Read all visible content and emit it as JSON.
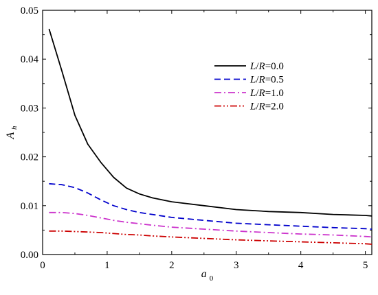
{
  "chart_data": {
    "type": "line",
    "xlabel": "a",
    "xlabel_sub": "0",
    "ylabel": "A",
    "ylabel_sub": "h",
    "xlim": [
      0,
      5.1
    ],
    "ylim": [
      0,
      0.05
    ],
    "xticks": [
      0,
      1,
      2,
      3,
      4,
      5
    ],
    "xtick_labels": [
      "0",
      "1",
      "2",
      "3",
      "4",
      "5"
    ],
    "yticks": [
      0,
      0.01,
      0.02,
      0.03,
      0.04,
      0.05
    ],
    "ytick_labels": [
      "0.00",
      "0.01",
      "0.02",
      "0.03",
      "0.04",
      "0.05"
    ],
    "grid": false,
    "legend_position": "top-right",
    "series": [
      {
        "name": "L/R=0.0",
        "label_italic_1": "L",
        "label_sep": "/",
        "label_italic_2": "R",
        "label_value": "=0.0",
        "color": "#000000",
        "dash": "solid",
        "x": [
          0.1,
          0.3,
          0.5,
          0.7,
          0.9,
          1.1,
          1.3,
          1.5,
          1.7,
          2.0,
          2.5,
          3.0,
          3.5,
          4.0,
          4.5,
          5.0,
          5.1
        ],
        "y": [
          0.0462,
          0.0375,
          0.0285,
          0.0226,
          0.0189,
          0.0158,
          0.0136,
          0.0124,
          0.0116,
          0.0108,
          0.01,
          0.0092,
          0.0088,
          0.0086,
          0.0082,
          0.008,
          0.0079
        ]
      },
      {
        "name": "L/R=0.5",
        "label_italic_1": "L",
        "label_sep": "/",
        "label_italic_2": "R",
        "label_value": "=0.5",
        "color": "#0000cc",
        "dash": "dash",
        "x": [
          0.1,
          0.3,
          0.5,
          0.7,
          0.9,
          1.1,
          1.3,
          1.5,
          1.7,
          2.0,
          2.5,
          3.0,
          3.5,
          4.0,
          4.5,
          5.0,
          5.1
        ],
        "y": [
          0.0145,
          0.0143,
          0.0137,
          0.0126,
          0.0112,
          0.01,
          0.0092,
          0.0086,
          0.0082,
          0.0076,
          0.007,
          0.0064,
          0.0061,
          0.0058,
          0.0055,
          0.0053,
          0.0052
        ]
      },
      {
        "name": "L/R=1.0",
        "label_italic_1": "L",
        "label_sep": "/",
        "label_italic_2": "R",
        "label_value": "=1.0",
        "color": "#cc33cc",
        "dash": "dashdot",
        "x": [
          0.1,
          0.3,
          0.5,
          0.7,
          0.9,
          1.1,
          1.3,
          1.5,
          1.7,
          2.0,
          2.5,
          3.0,
          3.5,
          4.0,
          4.5,
          5.0,
          5.1
        ],
        "y": [
          0.0086,
          0.0086,
          0.0084,
          0.008,
          0.0075,
          0.007,
          0.0066,
          0.0063,
          0.006,
          0.0056,
          0.0052,
          0.0048,
          0.0045,
          0.0042,
          0.004,
          0.0037,
          0.0036
        ]
      },
      {
        "name": "L/R=2.0",
        "label_italic_1": "L",
        "label_sep": "/",
        "label_italic_2": "R",
        "label_value": "=2.0",
        "color": "#cc0000",
        "dash": "dashdotdot",
        "x": [
          0.1,
          0.3,
          0.5,
          0.7,
          0.9,
          1.1,
          1.3,
          1.5,
          1.7,
          2.0,
          2.5,
          3.0,
          3.5,
          4.0,
          4.5,
          5.0,
          5.1
        ],
        "y": [
          0.0048,
          0.0048,
          0.0047,
          0.0046,
          0.0045,
          0.0043,
          0.0041,
          0.004,
          0.0038,
          0.0036,
          0.0033,
          0.003,
          0.0028,
          0.0026,
          0.0024,
          0.0022,
          0.0021
        ]
      }
    ]
  }
}
